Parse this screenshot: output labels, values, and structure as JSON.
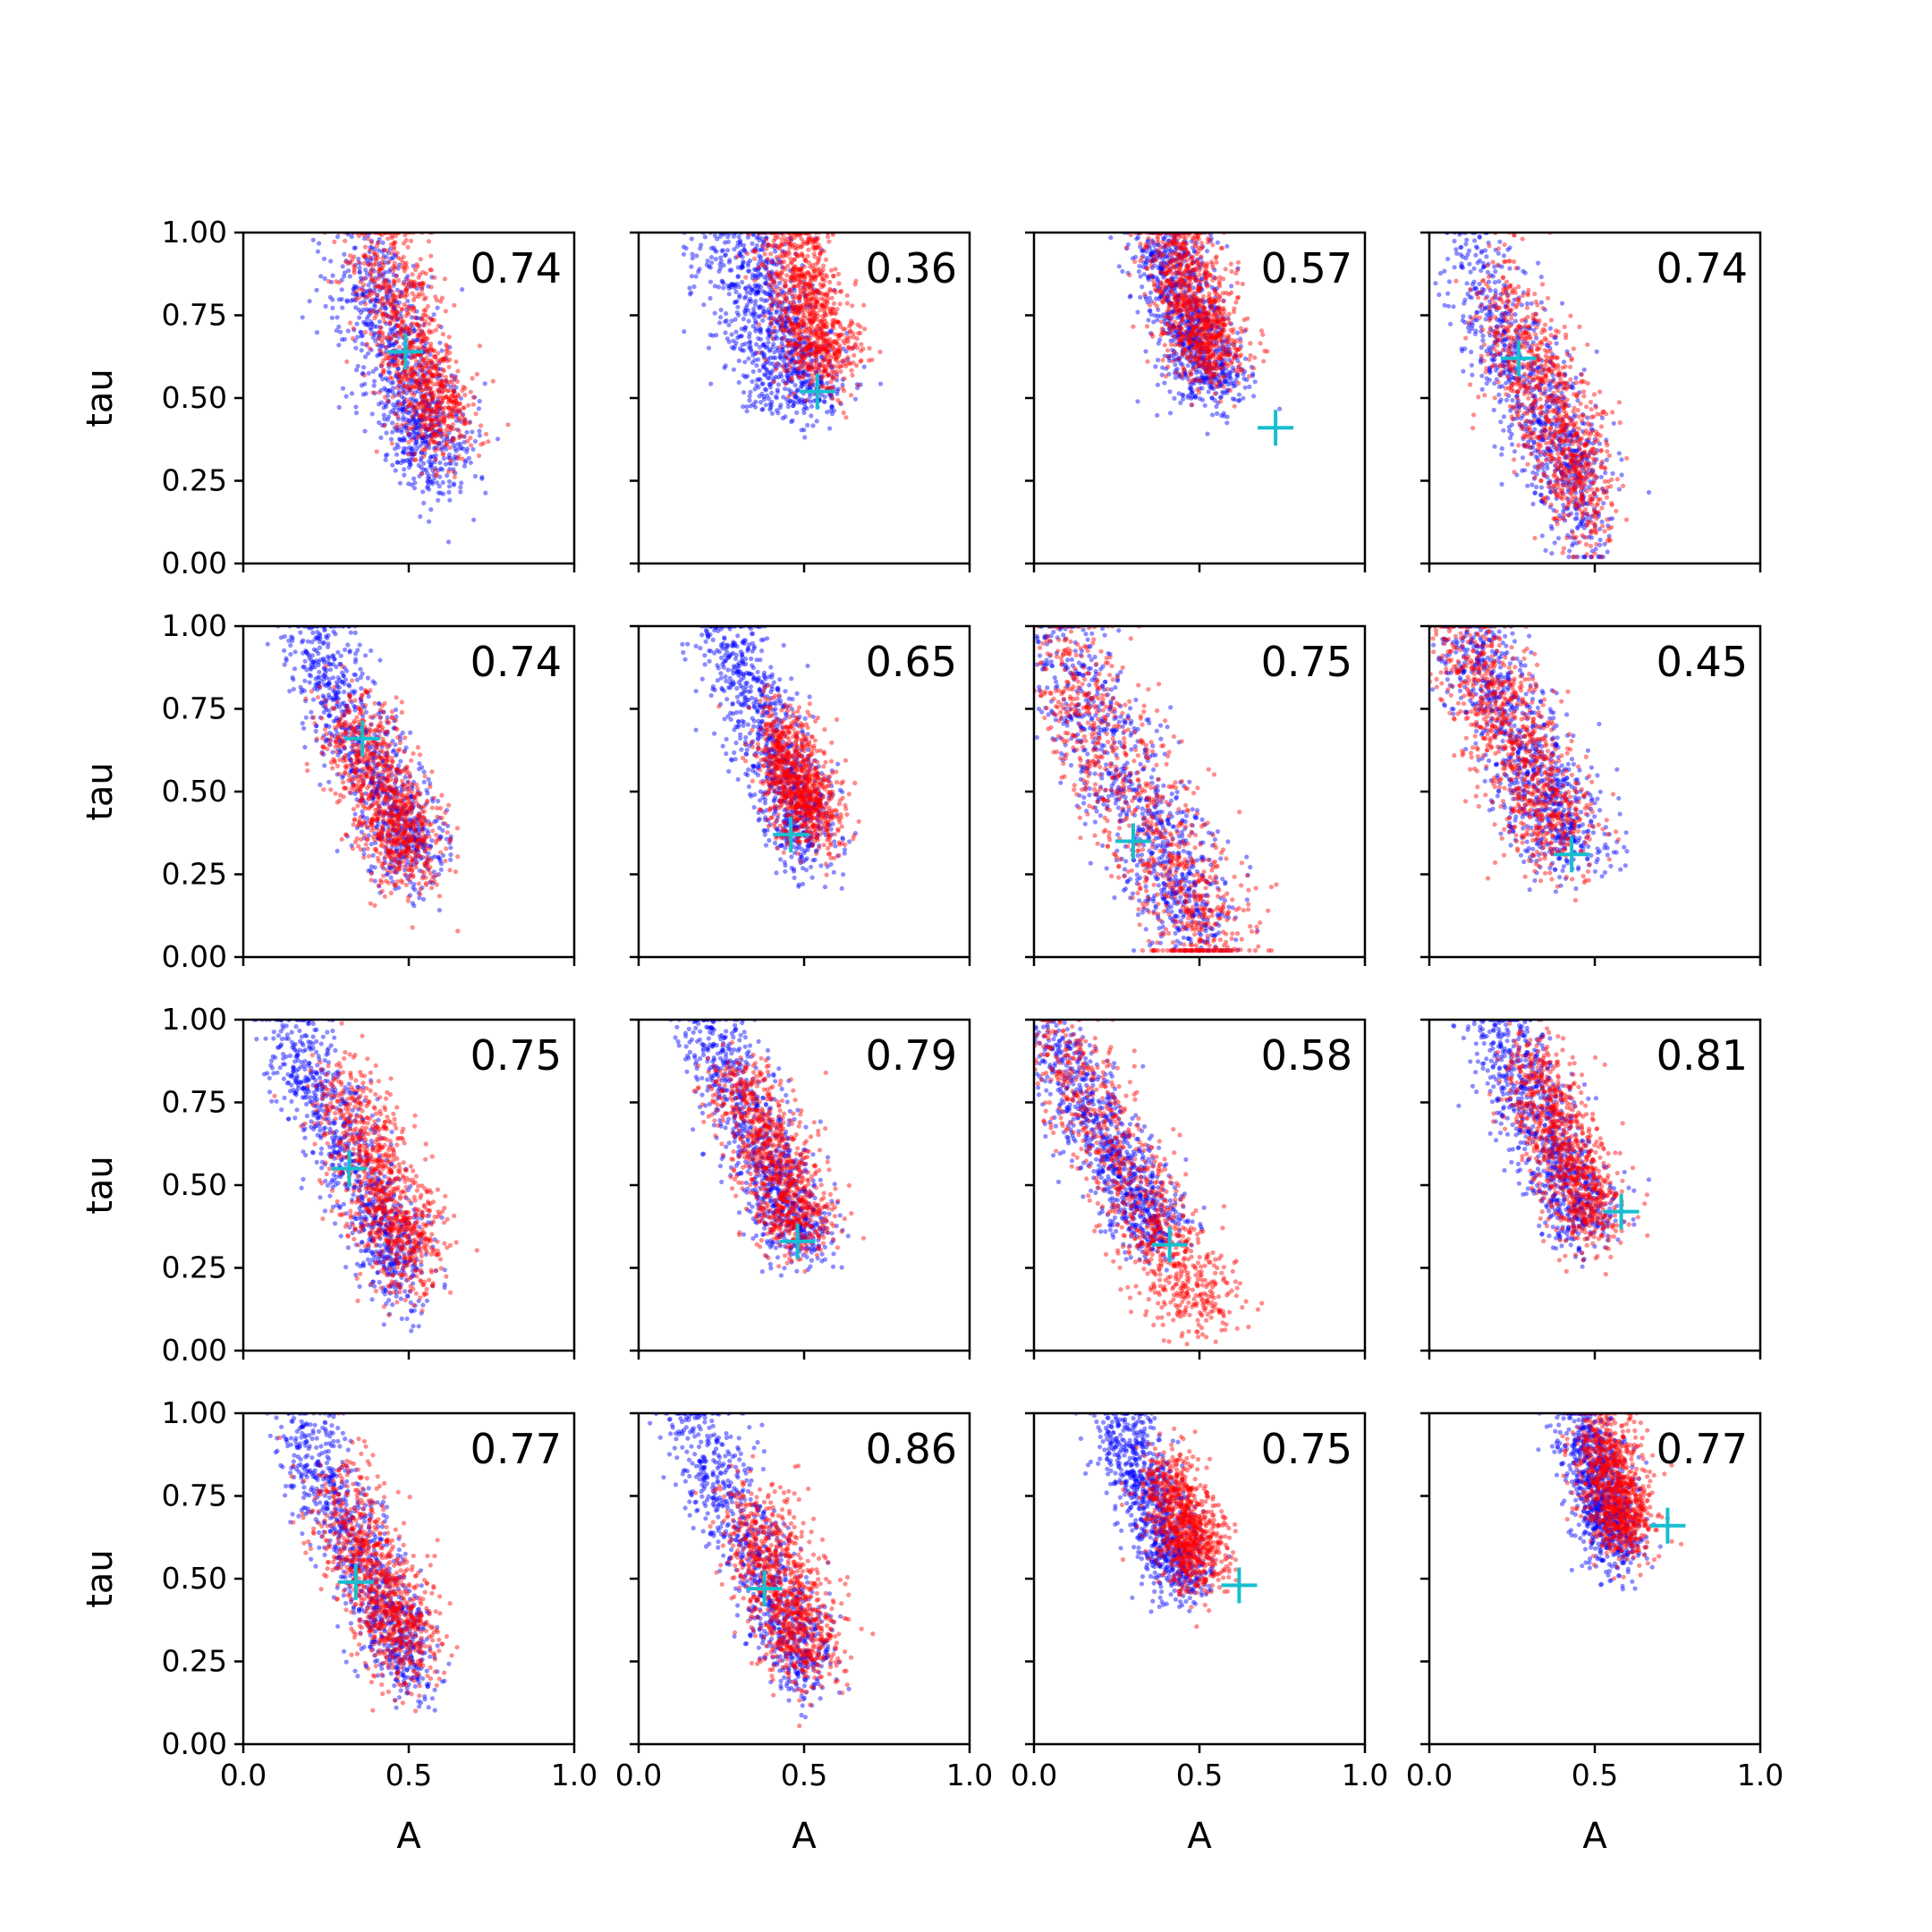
{
  "chart_data": {
    "type": "scatter",
    "layout": {
      "rows": 4,
      "cols": 4,
      "sharex": true,
      "sharey": true
    },
    "xlabel": "A",
    "ylabel": "tau",
    "xlim": [
      0.0,
      1.0
    ],
    "ylim": [
      0.0,
      1.0
    ],
    "x_ticks": [
      "0.0",
      "0.5",
      "1.0"
    ],
    "y_ticks": [
      "0.00",
      "0.25",
      "0.50",
      "0.75",
      "1.00"
    ],
    "grid": false,
    "legend": "none",
    "colors": {
      "blue": "#0000ff",
      "red": "#ff0000",
      "marker": "#17becf"
    },
    "panels": [
      {
        "label": "0.74",
        "marker": [
          0.49,
          0.64
        ],
        "blue": {
          "a0": 0.3,
          "a1": 0.95,
          "c": 0.33,
          "sa": 0.07,
          "st": 0.07
        },
        "red": {
          "a0": 0.4,
          "a1": 1.0,
          "c": 0.4,
          "sa": 0.06,
          "st": 0.07
        }
      },
      {
        "label": "0.36",
        "marker": [
          0.54,
          0.52
        ],
        "blue": {
          "a0": 0.5,
          "a1": 1.0,
          "c": 0.3,
          "sa": 0.08,
          "st": 0.05
        },
        "red": {
          "a0": 0.6,
          "a1": 1.0,
          "c": 0.45,
          "sa": 0.06,
          "st": 0.06
        }
      },
      {
        "label": "0.57",
        "marker": [
          0.73,
          0.41
        ],
        "blue": {
          "a0": 0.55,
          "a1": 1.0,
          "c": 0.38,
          "sa": 0.06,
          "st": 0.06
        },
        "red": {
          "a0": 0.62,
          "a1": 1.0,
          "c": 0.42,
          "sa": 0.06,
          "st": 0.06
        }
      },
      {
        "label": "0.74",
        "marker": [
          0.27,
          0.62
        ],
        "blue": {
          "a0": 0.2,
          "a1": 0.9,
          "c": 0.05,
          "sa": 0.05,
          "st": 0.12
        },
        "red": {
          "a0": 0.22,
          "a1": 0.8,
          "c": 0.1,
          "sa": 0.05,
          "st": 0.12
        }
      },
      {
        "label": "0.74",
        "marker": [
          0.36,
          0.66
        ],
        "blue": {
          "a0": 0.28,
          "a1": 1.0,
          "c": 0.2,
          "sa": 0.06,
          "st": 0.06
        },
        "red": {
          "a0": 0.3,
          "a1": 0.75,
          "c": 0.2,
          "sa": 0.06,
          "st": 0.07
        }
      },
      {
        "label": "0.65",
        "marker": [
          0.46,
          0.37
        ],
        "blue": {
          "a0": 0.35,
          "a1": 1.0,
          "c": 0.25,
          "sa": 0.06,
          "st": 0.07
        },
        "red": {
          "a0": 0.4,
          "a1": 0.7,
          "c": 0.3,
          "sa": 0.05,
          "st": 0.06
        }
      },
      {
        "label": "0.75",
        "marker": [
          0.3,
          0.35
        ],
        "blue": {
          "a0": 0.12,
          "a1": 1.0,
          "c": 0.02,
          "sa": 0.07,
          "st": 0.1
        },
        "red": {
          "a0": 0.05,
          "a1": 1.0,
          "c": 0.02,
          "sa": 0.08,
          "st": 0.1
        }
      },
      {
        "label": "0.45",
        "marker": [
          0.43,
          0.31
        ],
        "blue": {
          "a0": 0.33,
          "a1": 1.0,
          "c": 0.1,
          "sa": 0.07,
          "st": 0.06
        },
        "red": {
          "a0": 0.38,
          "a1": 1.0,
          "c": 0.08,
          "sa": 0.07,
          "st": 0.08
        }
      },
      {
        "label": "0.75",
        "marker": [
          0.32,
          0.55
        ],
        "blue": {
          "a0": 0.24,
          "a1": 1.0,
          "c": 0.12,
          "sa": 0.05,
          "st": 0.08
        },
        "red": {
          "a0": 0.28,
          "a1": 0.8,
          "c": 0.2,
          "sa": 0.06,
          "st": 0.08
        }
      },
      {
        "label": "0.79",
        "marker": [
          0.48,
          0.33
        ],
        "blue": {
          "a0": 0.33,
          "a1": 1.0,
          "c": 0.2,
          "sa": 0.06,
          "st": 0.06
        },
        "red": {
          "a0": 0.36,
          "a1": 0.85,
          "c": 0.22,
          "sa": 0.06,
          "st": 0.06
        }
      },
      {
        "label": "0.58",
        "marker": [
          0.41,
          0.32
        ],
        "blue": {
          "a0": 0.35,
          "a1": 1.0,
          "c": 0.02,
          "sa": 0.06,
          "st": 0.05
        },
        "red": {
          "a0": 0.12,
          "a1": 1.0,
          "c": 0.04,
          "sa": 0.07,
          "st": 0.06
        }
      },
      {
        "label": "0.81",
        "marker": [
          0.58,
          0.42
        ],
        "blue": {
          "a0": 0.4,
          "a1": 1.0,
          "c": 0.2,
          "sa": 0.06,
          "st": 0.06
        },
        "red": {
          "a0": 0.4,
          "a1": 0.9,
          "c": 0.25,
          "sa": 0.06,
          "st": 0.06
        }
      },
      {
        "label": "0.77",
        "marker": [
          0.34,
          0.49
        ],
        "blue": {
          "a0": 0.24,
          "a1": 1.0,
          "c": 0.15,
          "sa": 0.05,
          "st": 0.08
        },
        "red": {
          "a0": 0.28,
          "a1": 0.78,
          "c": 0.18,
          "sa": 0.06,
          "st": 0.08
        }
      },
      {
        "label": "0.86",
        "marker": [
          0.38,
          0.47
        ],
        "blue": {
          "a0": 0.24,
          "a1": 1.0,
          "c": 0.15,
          "sa": 0.05,
          "st": 0.08
        },
        "red": {
          "a0": 0.28,
          "a1": 0.72,
          "c": 0.2,
          "sa": 0.06,
          "st": 0.08
        }
      },
      {
        "label": "0.75",
        "marker": [
          0.62,
          0.48
        ],
        "blue": {
          "a0": 0.5,
          "a1": 1.0,
          "c": 0.25,
          "sa": 0.05,
          "st": 0.06
        },
        "red": {
          "a0": 0.55,
          "a1": 0.82,
          "c": 0.33,
          "sa": 0.05,
          "st": 0.06
        }
      },
      {
        "label": "0.77",
        "marker": [
          0.72,
          0.66
        ],
        "blue": {
          "a0": 0.6,
          "a1": 1.0,
          "c": 0.45,
          "sa": 0.05,
          "st": 0.06
        },
        "red": {
          "a0": 0.65,
          "a1": 0.95,
          "c": 0.5,
          "sa": 0.05,
          "st": 0.06
        }
      }
    ]
  }
}
